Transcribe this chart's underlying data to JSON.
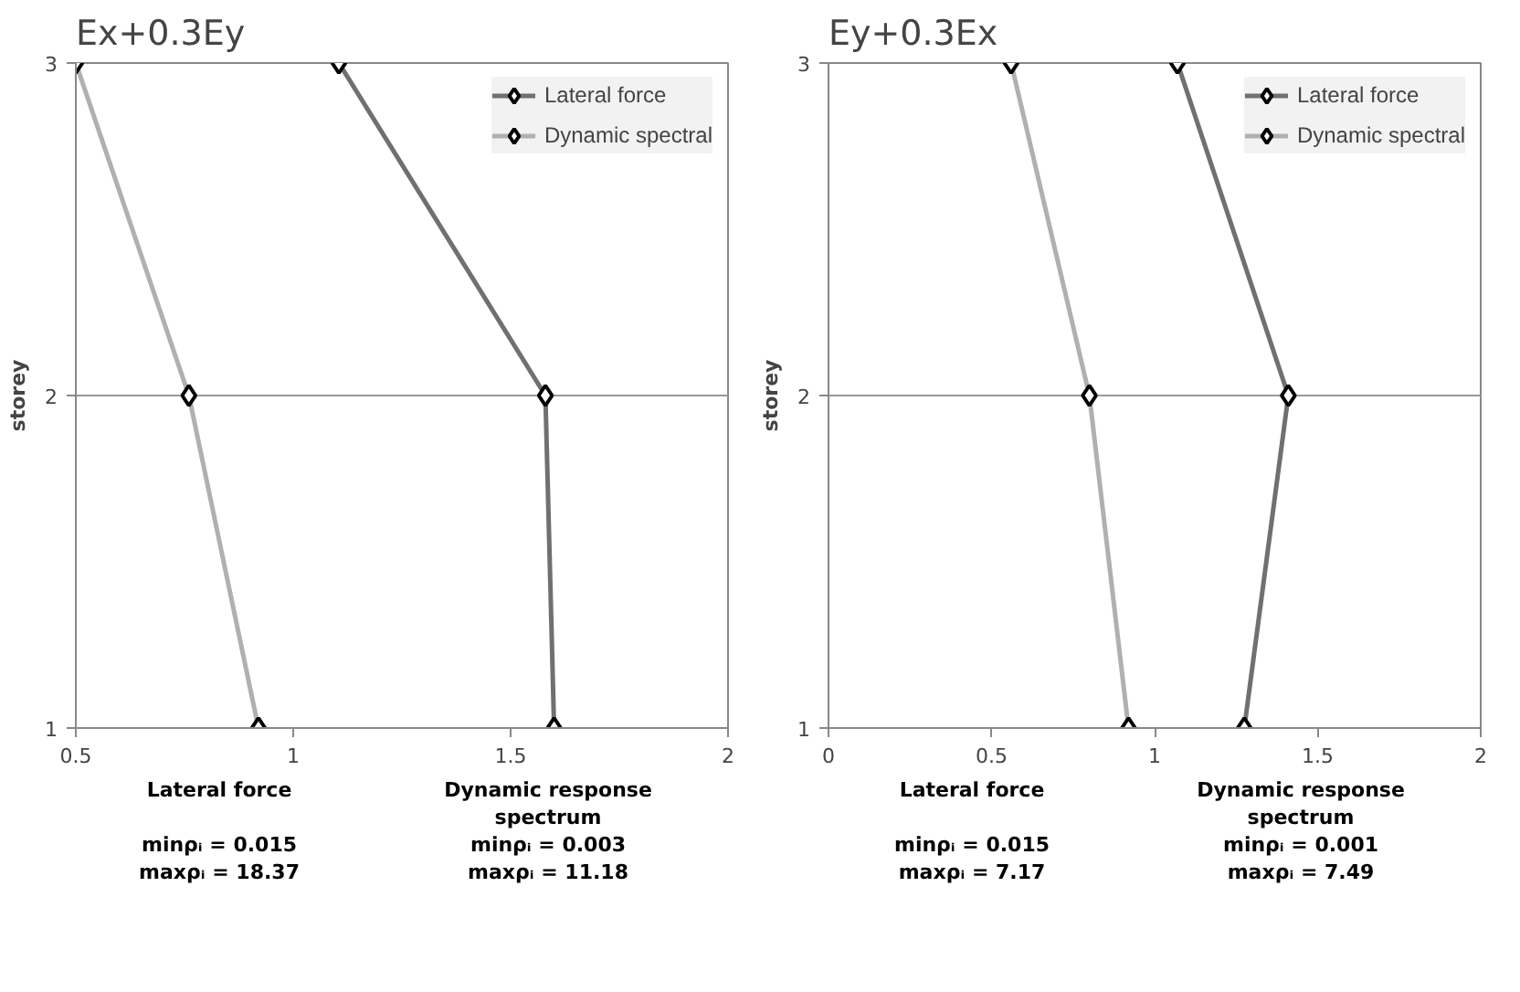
{
  "chart_data": [
    {
      "type": "line",
      "title": "Ex+0.3Ey",
      "ylabel": "storey",
      "x": [
        1,
        2,
        3
      ],
      "orientation": "horizontal",
      "series": [
        {
          "name": "Lateral force",
          "color": "#707070",
          "values": [
            1.6,
            1.58,
            1.105
          ]
        },
        {
          "name": "Dynamic spectral",
          "color": "#b0b0b0",
          "values": [
            0.92,
            0.76,
            0.5
          ]
        }
      ],
      "xlim": [
        0.5,
        2
      ],
      "xticks": [
        0.5,
        1,
        1.5,
        2
      ],
      "ylim": [
        1,
        3
      ],
      "yticks": [
        1,
        2,
        3
      ],
      "grid": "y",
      "legend": "right",
      "marker": "diamond",
      "line_style": "solid",
      "annotations": [
        "Lateral force\n\nminρᵢ = 0.015\nmaxρᵢ = 18.37",
        "Dynamic response\nspectrum\nminρᵢ = 0.003\nmaxρᵢ = 11.18"
      ]
    },
    {
      "type": "line",
      "title": "Ey+0.3Ex",
      "ylabel": "storey",
      "x": [
        1,
        2,
        3
      ],
      "orientation": "horizontal",
      "series": [
        {
          "name": "Lateral force",
          "color": "#707070",
          "values": [
            1.275,
            1.41,
            1.07
          ]
        },
        {
          "name": "Dynamic spectral",
          "color": "#b0b0b0",
          "values": [
            0.92,
            0.8,
            0.56
          ]
        }
      ],
      "xlim": [
        0,
        2
      ],
      "xticks": [
        0,
        0.5,
        1,
        1.5,
        2
      ],
      "ylim": [
        1,
        3
      ],
      "yticks": [
        1,
        2,
        3
      ],
      "grid": "y",
      "legend": "right",
      "marker": "diamond",
      "line_style": "solid",
      "annotations": [
        "Lateral force\n\nminρᵢ = 0.015\nmaxρᵢ = 7.17",
        "Dynamic response\nspectrum\nminρᵢ = 0.001\nmaxρᵢ = 7.49"
      ]
    }
  ]
}
